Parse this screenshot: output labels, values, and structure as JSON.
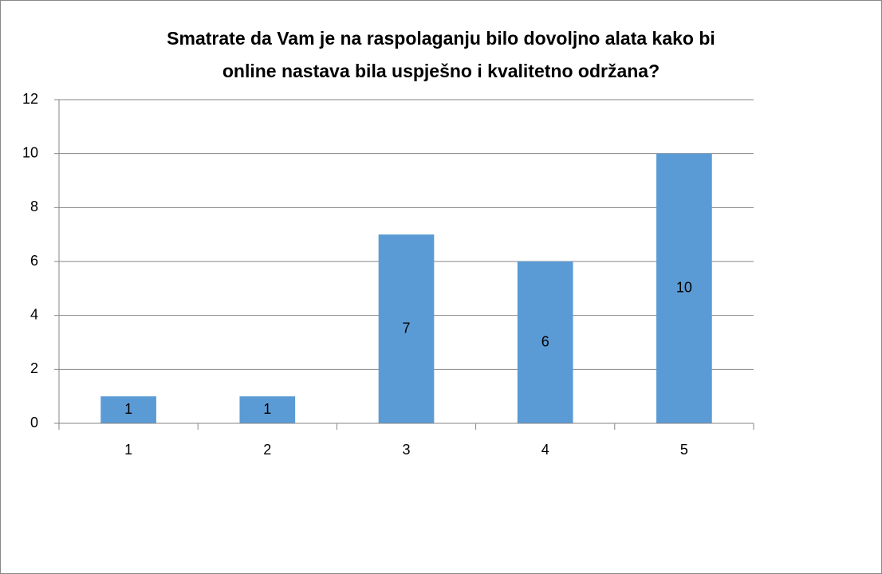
{
  "chart_data": {
    "type": "bar",
    "title": [
      "Smatrate da Vam je na raspolaganju bilo dovoljno alata kako bi",
      "online nastava bila uspješno i kvalitetno održana?"
    ],
    "categories": [
      "1",
      "2",
      "3",
      "4",
      "5"
    ],
    "values": [
      1,
      1,
      7,
      6,
      10
    ],
    "color": "#5b9bd5",
    "ylim": [
      0,
      12
    ],
    "yticks": [
      0,
      2,
      4,
      6,
      8,
      10,
      12
    ],
    "grid": true,
    "data_labels": true
  }
}
